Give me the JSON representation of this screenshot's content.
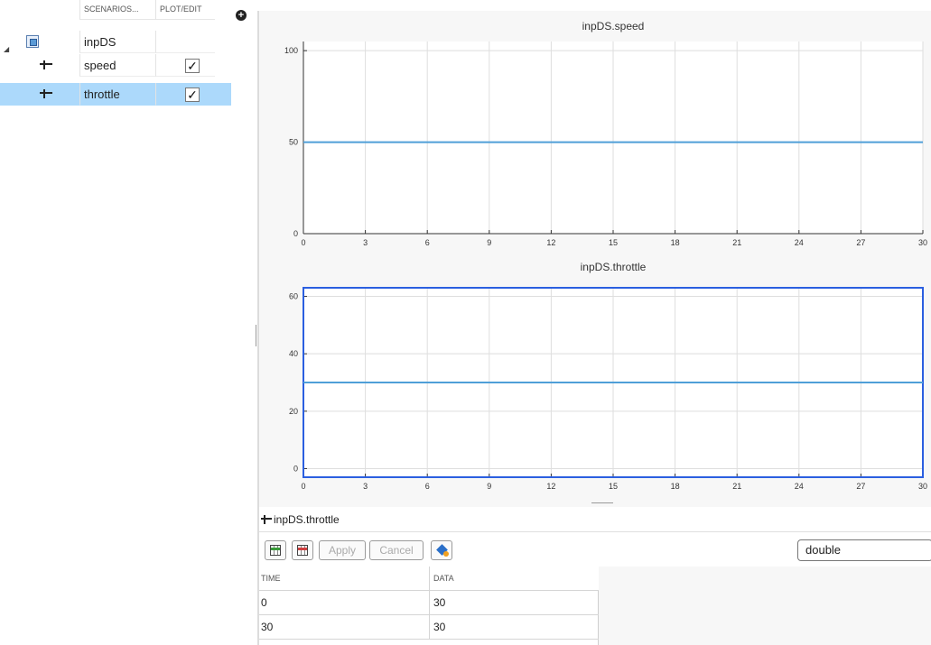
{
  "scenario_tree": {
    "columns": [
      "SCENARIOS...",
      "PLOT/EDIT"
    ],
    "rows": [
      {
        "name": "inpDS",
        "type": "dataset",
        "checked": null,
        "selected": false
      },
      {
        "name": "speed",
        "type": "signal",
        "checked": true,
        "selected": false
      },
      {
        "name": "throttle",
        "type": "signal",
        "checked": true,
        "selected": true
      }
    ],
    "add_button": "+"
  },
  "check_mark": "✓",
  "charts": {
    "speed": {
      "title": "inpDS.speed",
      "chart_data": {
        "type": "line",
        "title": "inpDS.speed",
        "x": [
          0,
          30
        ],
        "series": [
          {
            "values": [
              50,
              50
            ]
          }
        ],
        "xlim": [
          0,
          30
        ],
        "ylim": [
          0,
          105
        ],
        "xticks": [
          0,
          3,
          6,
          9,
          12,
          15,
          18,
          21,
          24,
          27,
          30
        ],
        "yticks": [
          0,
          50,
          100
        ],
        "grid": true,
        "line_color": "#4f9fd8",
        "selected": false
      }
    },
    "throttle": {
      "title": "inpDS.throttle",
      "chart_data": {
        "type": "line",
        "title": "inpDS.throttle",
        "x": [
          0,
          30
        ],
        "series": [
          {
            "values": [
              30,
              30
            ]
          }
        ],
        "xlim": [
          0,
          30
        ],
        "ylim": [
          -3,
          63
        ],
        "xticks": [
          0,
          3,
          6,
          9,
          12,
          15,
          18,
          21,
          24,
          27,
          30
        ],
        "yticks": [
          0,
          20,
          40,
          60
        ],
        "grid": true,
        "line_color": "#4f9fd8",
        "selected": true,
        "selection_color": "#2b5fe0"
      }
    }
  },
  "signal_bar": {
    "label": "inpDS.throttle"
  },
  "toolbar": {
    "apply_label": "Apply",
    "cancel_label": "Cancel",
    "data_type": "double"
  },
  "table": {
    "headers": [
      "TIME",
      "DATA"
    ],
    "rows": [
      [
        "0",
        "30"
      ],
      [
        "30",
        "30"
      ]
    ]
  }
}
